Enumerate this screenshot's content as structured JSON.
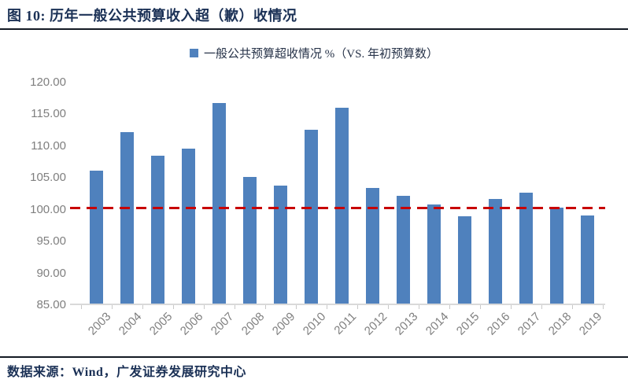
{
  "title": "图 10:  历年一般公共预算收入超（歉）收情况",
  "legend": {
    "label": "一般公共预算超收情况 %（VS. 年初预算数）",
    "marker": "blue-square-icon"
  },
  "footer": {
    "source": "数据来源：Wind，广发证券发展研究中心"
  },
  "colors": {
    "bar": "#4F81BD",
    "reference_line": "#C80000",
    "title_text": "#1B3156",
    "axis_text": "#7F7F7F",
    "axis_line": "#D9D9D9",
    "divider": "#141A24"
  },
  "chart_data": {
    "type": "bar",
    "title": "一般公共预算超收情况 %（VS. 年初预算数）",
    "categories": [
      "2003",
      "2004",
      "2005",
      "2006",
      "2007",
      "2008",
      "2009",
      "2010",
      "2011",
      "2012",
      "2013",
      "2014",
      "2015",
      "2016",
      "2017",
      "2018",
      "2019"
    ],
    "values": [
      105.9,
      112.0,
      108.2,
      109.4,
      116.5,
      104.9,
      103.5,
      112.3,
      115.8,
      103.2,
      102.0,
      100.6,
      98.7,
      101.5,
      102.4,
      100.1,
      98.9
    ],
    "xlabel": "",
    "ylabel": "",
    "ylim": [
      85,
      120
    ],
    "ytick_labels": [
      "120.00",
      "115.00",
      "110.00",
      "105.00",
      "100.00",
      "95.00",
      "90.00",
      "85.00"
    ],
    "ytick_values": [
      120,
      115,
      110,
      105,
      100,
      95,
      90,
      85
    ],
    "grid": false,
    "legend_position": "top-center",
    "reference_line": {
      "value": 100.0,
      "style": "dashed",
      "color": "#C80000"
    }
  }
}
